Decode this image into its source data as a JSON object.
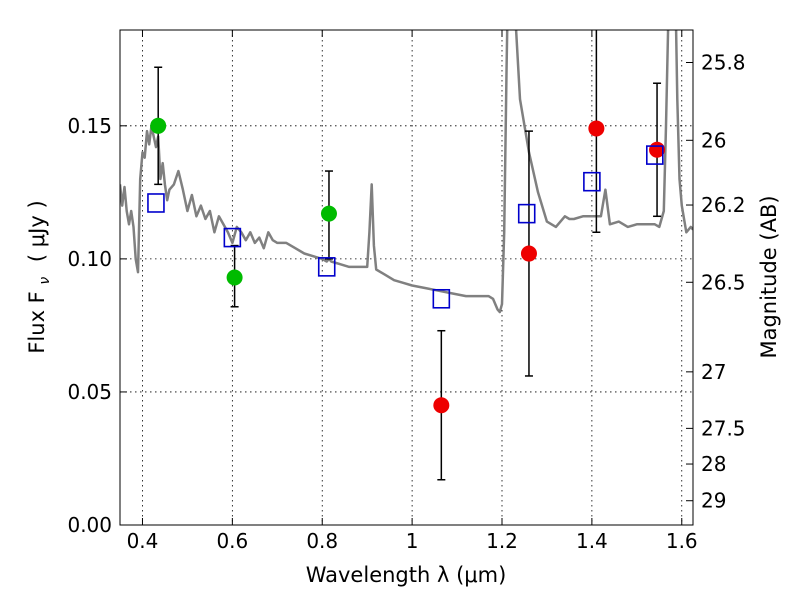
{
  "chart_data": {
    "type": "scatter",
    "xlabel": "Wavelength  λ (μm)",
    "ylabel": "Flux  F",
    "ylabel_sub": "ν",
    "ylabel_unit": "( μJy )",
    "ylabel_right": "Magnitude (AB)",
    "xlim": [
      0.35,
      1.625
    ],
    "ylim": [
      0.0,
      0.186
    ],
    "grid": true,
    "x_ticks": [
      {
        "value": 0.4,
        "label": "0.4"
      },
      {
        "value": 0.6,
        "label": "0.6"
      },
      {
        "value": 0.8,
        "label": "0.8"
      },
      {
        "value": 1.0,
        "label": "1"
      },
      {
        "value": 1.2,
        "label": "1.2"
      },
      {
        "value": 1.4,
        "label": "1.4"
      },
      {
        "value": 1.6,
        "label": "1.6"
      }
    ],
    "y_ticks": [
      {
        "value": 0.0,
        "label": "0.00"
      },
      {
        "value": 0.05,
        "label": "0.05"
      },
      {
        "value": 0.1,
        "label": "0.10"
      },
      {
        "value": 0.15,
        "label": "0.15"
      }
    ],
    "right_ticks": [
      {
        "value": 25.8,
        "label": "25.8"
      },
      {
        "value": 26.0,
        "label": "26"
      },
      {
        "value": 26.2,
        "label": "26.2"
      },
      {
        "value": 26.5,
        "label": "26.5"
      },
      {
        "value": 27.0,
        "label": "27"
      },
      {
        "value": 27.5,
        "label": "27.5"
      },
      {
        "value": 28.0,
        "label": "28"
      },
      {
        "value": 29.0,
        "label": "29"
      }
    ],
    "colors": {
      "green": "#00bb00",
      "red": "#ee0000",
      "blue": "#0000cc",
      "model": "#808080",
      "errorbar": "#000000"
    },
    "series": [
      {
        "marker": "circle-green",
        "points": [
          {
            "x": 0.435,
            "y": 0.15,
            "err_low": 0.022,
            "err_high": 0.022
          },
          {
            "x": 0.605,
            "y": 0.093,
            "err_low": 0.011,
            "err_high": 0.012
          },
          {
            "x": 0.815,
            "y": 0.117,
            "err_low": 0.017,
            "err_high": 0.016
          }
        ]
      },
      {
        "marker": "circle-red",
        "points": [
          {
            "x": 1.065,
            "y": 0.045,
            "err_low": 0.028,
            "err_high": 0.028
          },
          {
            "x": 1.26,
            "y": 0.102,
            "err_low": 0.046,
            "err_high": 0.046
          },
          {
            "x": 1.41,
            "y": 0.149,
            "err_low": 0.039,
            "err_high": 0.039
          },
          {
            "x": 1.545,
            "y": 0.141,
            "err_low": 0.025,
            "err_high": 0.025
          }
        ]
      },
      {
        "marker": "square-blue",
        "points": [
          {
            "x": 0.43,
            "y": 0.121
          },
          {
            "x": 0.6,
            "y": 0.108
          },
          {
            "x": 0.81,
            "y": 0.097
          },
          {
            "x": 1.065,
            "y": 0.085
          },
          {
            "x": 1.255,
            "y": 0.117
          },
          {
            "x": 1.4,
            "y": 0.129
          },
          {
            "x": 1.54,
            "y": 0.139
          }
        ]
      },
      {
        "marker": "line-grey",
        "x": [
          0.35,
          0.355,
          0.36,
          0.365,
          0.37,
          0.375,
          0.38,
          0.385,
          0.39,
          0.395,
          0.4,
          0.405,
          0.41,
          0.415,
          0.42,
          0.425,
          0.43,
          0.435,
          0.44,
          0.445,
          0.45,
          0.455,
          0.46,
          0.47,
          0.48,
          0.49,
          0.5,
          0.51,
          0.52,
          0.53,
          0.54,
          0.55,
          0.56,
          0.57,
          0.58,
          0.59,
          0.6,
          0.61,
          0.62,
          0.63,
          0.64,
          0.65,
          0.66,
          0.67,
          0.68,
          0.69,
          0.7,
          0.72,
          0.74,
          0.76,
          0.78,
          0.8,
          0.81,
          0.815,
          0.82,
          0.84,
          0.86,
          0.88,
          0.9,
          0.905,
          0.91,
          0.915,
          0.92,
          0.94,
          0.96,
          0.98,
          1.0,
          1.03,
          1.06,
          1.09,
          1.12,
          1.15,
          1.17,
          1.18,
          1.19,
          1.195,
          1.2,
          1.205,
          1.21,
          1.215,
          1.22,
          1.23,
          1.24,
          1.26,
          1.28,
          1.3,
          1.32,
          1.34,
          1.35,
          1.36,
          1.38,
          1.4,
          1.42,
          1.43,
          1.44,
          1.46,
          1.48,
          1.5,
          1.52,
          1.54,
          1.55,
          1.56,
          1.565,
          1.57,
          1.575,
          1.58,
          1.585,
          1.59,
          1.595,
          1.6,
          1.61,
          1.62,
          1.625
        ],
        "y": [
          0.128,
          0.12,
          0.127,
          0.118,
          0.113,
          0.118,
          0.112,
          0.1,
          0.095,
          0.13,
          0.14,
          0.138,
          0.148,
          0.143,
          0.15,
          0.146,
          0.142,
          0.146,
          0.13,
          0.136,
          0.128,
          0.122,
          0.126,
          0.128,
          0.133,
          0.126,
          0.118,
          0.124,
          0.116,
          0.12,
          0.115,
          0.118,
          0.11,
          0.116,
          0.113,
          0.11,
          0.106,
          0.112,
          0.11,
          0.107,
          0.11,
          0.106,
          0.108,
          0.104,
          0.11,
          0.107,
          0.106,
          0.106,
          0.104,
          0.102,
          0.101,
          0.1,
          0.099,
          0.1,
          0.099,
          0.098,
          0.097,
          0.097,
          0.097,
          0.11,
          0.128,
          0.105,
          0.096,
          0.094,
          0.092,
          0.091,
          0.09,
          0.089,
          0.088,
          0.087,
          0.086,
          0.086,
          0.086,
          0.085,
          0.081,
          0.08,
          0.083,
          0.11,
          0.17,
          0.22,
          0.25,
          0.19,
          0.16,
          0.14,
          0.125,
          0.114,
          0.112,
          0.116,
          0.115,
          0.115,
          0.116,
          0.116,
          0.116,
          0.126,
          0.113,
          0.114,
          0.112,
          0.113,
          0.113,
          0.113,
          0.112,
          0.118,
          0.15,
          0.19,
          0.21,
          0.24,
          0.21,
          0.16,
          0.13,
          0.12,
          0.11,
          0.112,
          0.111
        ]
      }
    ]
  }
}
